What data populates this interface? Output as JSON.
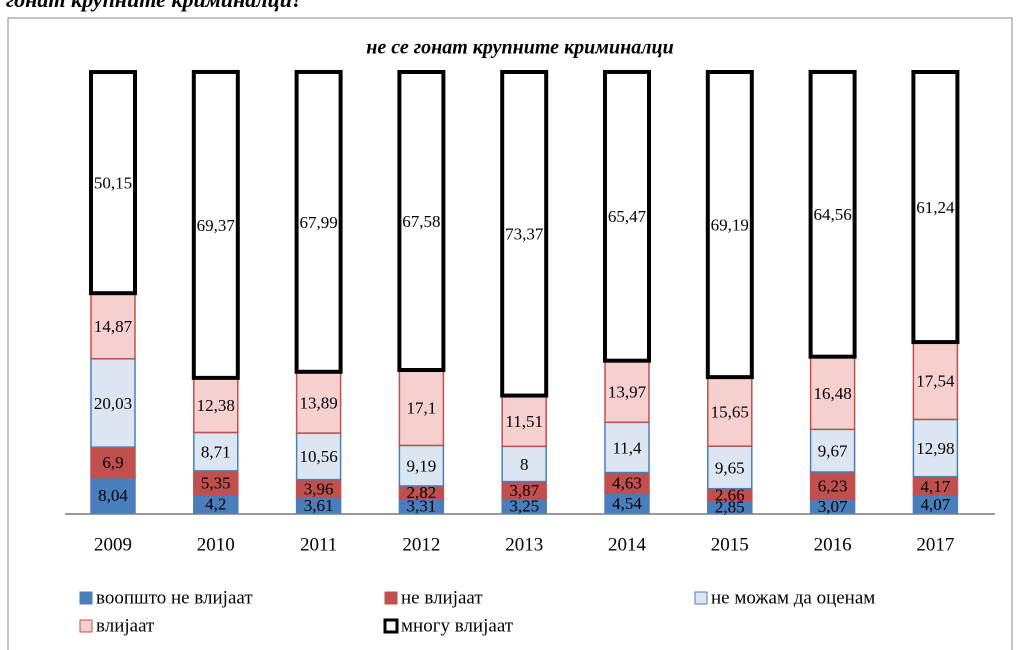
{
  "heading": "гонат крупните криминалци?",
  "chart_data": {
    "type": "stacked_bar",
    "title": "не се гонат крупните криминалци",
    "categories": [
      "2009",
      "2010",
      "2011",
      "2012",
      "2013",
      "2014",
      "2015",
      "2016",
      "2017"
    ],
    "ylim": [
      0,
      100
    ],
    "series": [
      {
        "name": "воопшто не влијаат",
        "color": "#4a7ebb",
        "stroke": "#4a7ebb",
        "values": [
          8.04,
          4.2,
          3.61,
          3.31,
          3.25,
          4.54,
          2.85,
          3.07,
          4.07
        ],
        "value_labels": [
          "8,04",
          "4,2",
          "3,61",
          "3,31",
          "3,25",
          "4,54",
          "2,85",
          "3,07",
          "4,07"
        ]
      },
      {
        "name": "не влијаат",
        "color": "#c0504d",
        "stroke": "#c0504d",
        "values": [
          6.9,
          5.35,
          3.96,
          2.82,
          3.87,
          4.63,
          2.66,
          6.23,
          4.17
        ],
        "value_labels": [
          "6,9",
          "5,35",
          "3,96",
          "2,82",
          "3,87",
          "4,63",
          "2,66",
          "6,23",
          "4,17"
        ]
      },
      {
        "name": "не можам да оценам",
        "color": "#dce6f2",
        "stroke": "#4a7ebb",
        "values": [
          20.03,
          8.71,
          10.56,
          9.19,
          8,
          11.4,
          9.65,
          9.67,
          12.98
        ],
        "value_labels": [
          "20,03",
          "8,71",
          "10,56",
          "9,19",
          "8",
          "11,4",
          "9,65",
          "9,67",
          "12,98"
        ]
      },
      {
        "name": "влијаат",
        "color": "#f6d0cf",
        "stroke": "#c0504d",
        "values": [
          14.87,
          12.38,
          13.89,
          17.1,
          11.51,
          13.97,
          15.65,
          16.48,
          17.54
        ],
        "value_labels": [
          "14,87",
          "12,38",
          "13,89",
          "17,1",
          "11,51",
          "13,97",
          "15,65",
          "16,48",
          "17,54"
        ]
      },
      {
        "name": "многу влијаат",
        "color": "#ffffff",
        "stroke": "#000000",
        "values": [
          50.15,
          69.37,
          67.99,
          67.58,
          73.37,
          65.47,
          69.19,
          64.56,
          61.24
        ],
        "value_labels": [
          "50,15",
          "69,37",
          "67,99",
          "67,58",
          "73,37",
          "65,47",
          "69,19",
          "64,56",
          "61,24"
        ]
      }
    ]
  }
}
